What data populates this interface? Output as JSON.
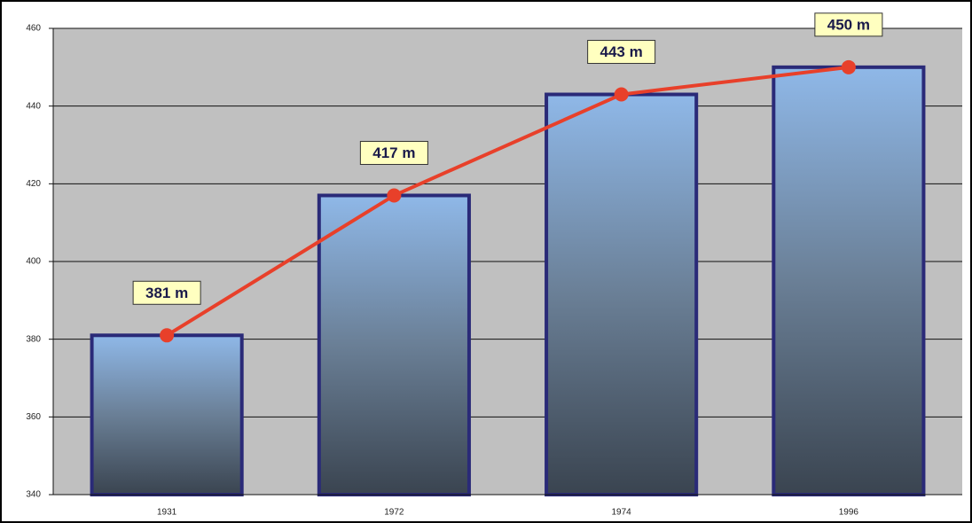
{
  "chart_data": {
    "type": "bar",
    "categories": [
      "1931",
      "1972",
      "1974",
      "1996"
    ],
    "values": [
      381,
      417,
      443,
      450
    ],
    "value_labels": [
      "381 m",
      "417 m",
      "443 m",
      "450 m"
    ],
    "ylim": [
      340,
      460
    ],
    "yticks": [
      340,
      360,
      380,
      400,
      420,
      440,
      460
    ],
    "grid": true,
    "line": true,
    "line_color": "#e8402a",
    "bar_border_color": "#2a2a78",
    "background": "#c0c0c0"
  }
}
